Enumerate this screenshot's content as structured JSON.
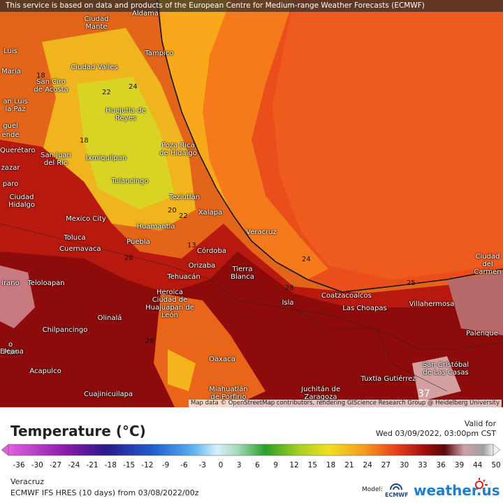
{
  "header": {
    "notice": "This service is based on data and products of the European Centre for Medium-range Weather Forecasts (ECMWF)"
  },
  "map": {
    "cities": [
      "Aldama",
      "Ciudad Mante",
      "Tampico",
      "Luis",
      "María",
      "Ciudad Valles",
      "San Ciro de Acosta",
      "an Luis la Paz",
      "Huejutla de Reyes",
      "guel",
      "ende",
      "Poza Rica de Hidalgo",
      "Querétaro",
      "San Juan del Río",
      "Ixmiquilpan",
      "zazar",
      "paro",
      "Tulancingo",
      "Teziutlán",
      "Ciudad Hidalgo",
      "Xalapa",
      "Mexico City",
      "Huamantla",
      "Veracruz",
      "Toluca",
      "Puebla",
      "Cuernavaca",
      "Córdoba",
      "Orizaba",
      "Tierra Blanca",
      "Tehuacán",
      "irano",
      "Teloloapan",
      "Ciudad del Carmen",
      "Heroica Ciudad de Huajuapan de León",
      "Coatzacoalcos",
      "Isla",
      "Las Choapas",
      "Villahermosa",
      "Olinalá",
      "Chilpancingo",
      "Palenque",
      "o Plan",
      "Eleana",
      "Oaxaca",
      "Acapulco",
      "San Cristóbal de Las Casas",
      "Tuxtla Gutiérrez",
      "Miahuatlán de Porfirio",
      "Juchitán de Zaragoza",
      "Cuajinicuilapa"
    ],
    "contour_labels": [
      "18",
      "24",
      "22",
      "18",
      "20",
      "22",
      "13",
      "26",
      "24",
      "28",
      "25",
      "26",
      "37"
    ],
    "attribution": "Map data © OpenStreetMap contributors, rendering GIScience Research Group @ Heidelberg University"
  },
  "legend": {
    "title": "Temperature (°C)",
    "valid_label": "Valid for",
    "valid_time": "Wed 03/09/2022, 03:00pm CST",
    "ticks": [
      -36,
      -30,
      -27,
      -24,
      -21,
      -18,
      -15,
      -12,
      -9,
      -6,
      -3,
      0,
      3,
      6,
      9,
      12,
      15,
      18,
      21,
      24,
      27,
      30,
      33,
      36,
      39,
      44,
      50
    ],
    "region": "Veracruz",
    "source": "ECMWF IFS HRES (10 days) from 03/08/2022/00z",
    "model_label": "Model:",
    "model": "ECMWF",
    "brand": "weather.us"
  }
}
